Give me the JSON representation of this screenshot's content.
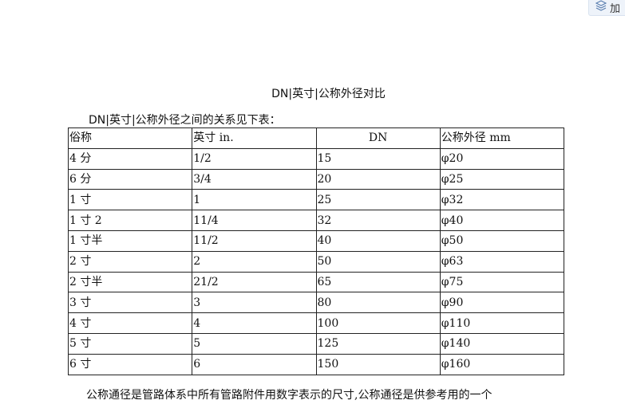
{
  "toolbar": {
    "add_button_label": "加",
    "icon": "layers-icon"
  },
  "document": {
    "title": "DN|英寸|公称外径对比",
    "intro": "DN|英寸|公称外径之间的关系见下表：",
    "table": {
      "headers": [
        "俗称",
        "英寸 in.",
        "DN",
        "公称外径 mm"
      ],
      "rows": [
        [
          "4 分",
          "1/2",
          "15",
          "φ20"
        ],
        [
          "6 分",
          "3/4",
          "20",
          "φ25"
        ],
        [
          "1 寸",
          "1",
          "25",
          "φ32"
        ],
        [
          "1 寸 2",
          "11/4",
          "32",
          "φ40"
        ],
        [
          "1 寸半",
          "11/2",
          "40",
          "φ50"
        ],
        [
          "2 寸",
          "2",
          "50",
          "φ63"
        ],
        [
          "2 寸半",
          "21/2",
          "65",
          "φ75"
        ],
        [
          "3 寸",
          "3",
          "80",
          "φ90"
        ],
        [
          "4 寸",
          "4",
          "100",
          "φ110"
        ],
        [
          "5 寸",
          "5",
          "125",
          "φ140"
        ],
        [
          "6 寸",
          "6",
          "150",
          "φ160"
        ]
      ]
    },
    "paragraph": "公称通径是管路体系中所有管路附件用数字表示的尺寸,公称通径是供参考用的一个"
  }
}
